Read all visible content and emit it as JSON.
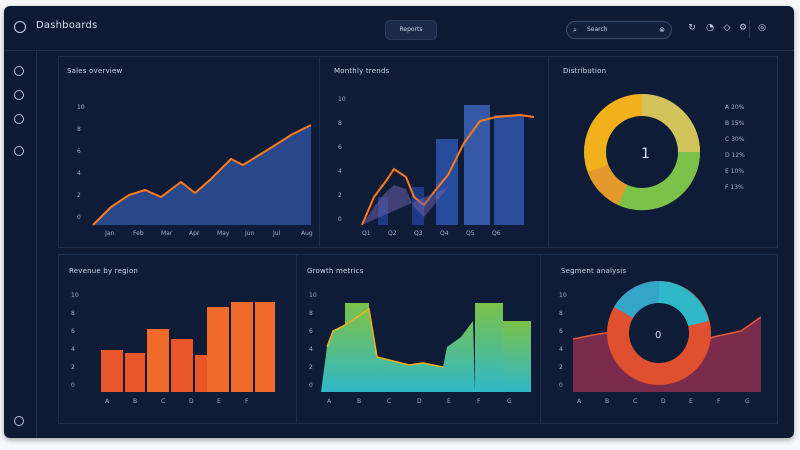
{
  "app": {
    "title": "Dashboards"
  },
  "topbar": {
    "center_button": "Reports",
    "search_text": "Search",
    "icons": [
      "refresh-icon",
      "user-icon",
      "bell-icon",
      "settings-icon"
    ]
  },
  "rail": {
    "icons": [
      "chart-icon",
      "clock-icon",
      "settings-icon",
      "help-icon"
    ],
    "bottom_icon": "logout-icon"
  },
  "panels": [
    {
      "title": "Sales overview"
    },
    {
      "title": "Monthly trends"
    },
    {
      "title": "Distribution"
    },
    {
      "title": "Revenue by region"
    },
    {
      "title": "Growth metrics"
    },
    {
      "title": "Segment analysis"
    }
  ],
  "colors": {
    "bg": "#0e1a33",
    "area": "#3a5eb0",
    "line": "#ff7a1a",
    "bar": "#e8562a",
    "teal": "#2fb8c8",
    "green": "#7cc24a",
    "yellow": "#f2b11b",
    "purple": "#6a2a6a",
    "red": "#d84a3a"
  },
  "charts": {
    "c1": {
      "type": "area",
      "yticks": [
        "10",
        "8",
        "6",
        "4",
        "2",
        "0"
      ],
      "xticks": [
        "Jan",
        "Feb",
        "Mar",
        "Apr",
        "May",
        "Jun",
        "Jul",
        "Aug"
      ]
    },
    "c2": {
      "type": "bar+line",
      "yticks": [
        "10",
        "8",
        "6",
        "4",
        "2",
        "0"
      ],
      "xticks": [
        "Q1",
        "Q2",
        "Q3",
        "Q4",
        "Q5",
        "Q6"
      ]
    },
    "c3": {
      "type": "donut",
      "center": "1",
      "legend": [
        "A 20%",
        "B 15%",
        "C 30%",
        "D 12%",
        "E 10%",
        "F 13%"
      ]
    },
    "c4": {
      "type": "bar",
      "yticks": [
        "10",
        "8",
        "6",
        "4",
        "2",
        "0"
      ],
      "xticks": [
        "A",
        "B",
        "C",
        "D",
        "E",
        "F"
      ]
    },
    "c5": {
      "type": "area+bar",
      "yticks": [
        "10",
        "8",
        "6",
        "4",
        "2",
        "0"
      ],
      "xticks": [
        "A",
        "B",
        "C",
        "D",
        "E",
        "F",
        "G"
      ]
    },
    "c6": {
      "type": "donut+area",
      "center": "0",
      "yticks": [
        "10",
        "8",
        "6",
        "4",
        "2",
        "0"
      ],
      "xticks": [
        "A",
        "B",
        "C",
        "D",
        "E",
        "F",
        "G"
      ]
    }
  }
}
